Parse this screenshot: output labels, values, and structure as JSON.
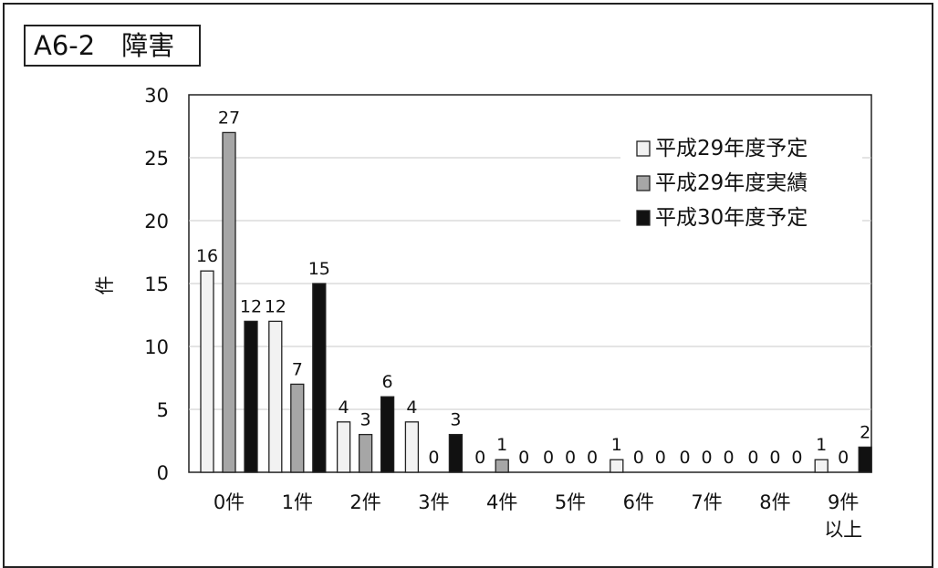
{
  "chart_data": {
    "type": "bar",
    "title": "A6-2　障害",
    "ylabel": "件",
    "xlabel": "",
    "ylim": [
      0,
      30
    ],
    "yticks": [
      0,
      5,
      10,
      15,
      20,
      25,
      30
    ],
    "grid": true,
    "legend_position": "top-right",
    "categories": [
      "0件",
      "1件",
      "2件",
      "3件",
      "4件",
      "5件",
      "6件",
      "7件",
      "8件",
      "9件\n以上"
    ],
    "series": [
      {
        "name": "平成29年度予定",
        "color": "#f2f2f2",
        "marker": "□",
        "values": [
          16,
          12,
          4,
          4,
          0,
          0,
          1,
          0,
          0,
          1
        ]
      },
      {
        "name": "平成29年度実績",
        "color": "#a6a6a6",
        "marker": "■",
        "values": [
          27,
          7,
          3,
          0,
          1,
          0,
          0,
          0,
          0,
          0
        ]
      },
      {
        "name": "平成30年度予定",
        "color": "#111111",
        "marker": "■",
        "values": [
          12,
          15,
          6,
          3,
          0,
          0,
          0,
          0,
          0,
          2
        ]
      }
    ]
  }
}
